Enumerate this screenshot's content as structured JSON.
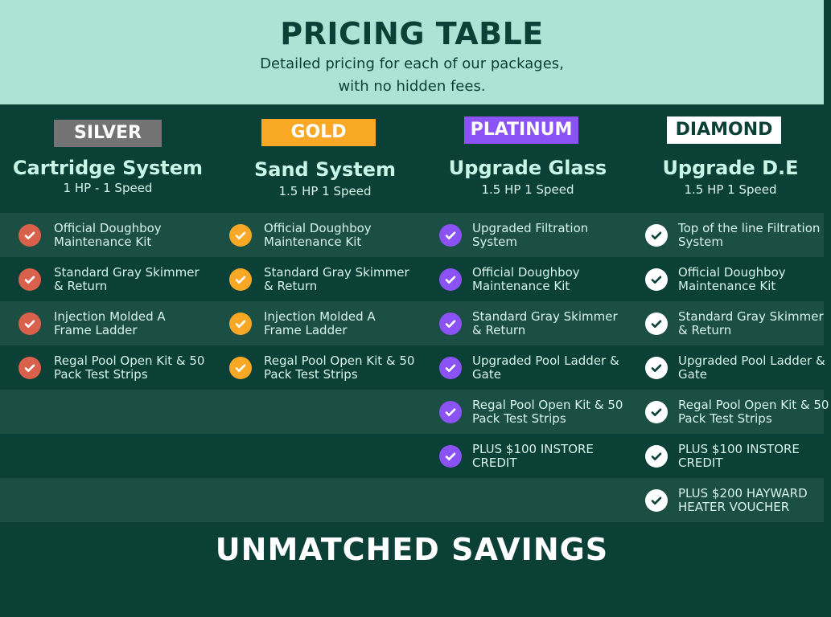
{
  "header": {
    "title": "PRICING TABLE",
    "subtitle_line1": "Detailed pricing for each of our packages,",
    "subtitle_line2": "with no hidden fees."
  },
  "plans": [
    {
      "tier": "SILVER",
      "name": "Cartridge System",
      "spec": "1 HP - 1 Speed",
      "badge_bg": "#737373",
      "badge_fg": "#ffffff",
      "check_color": "#d9614b",
      "check_fg": "#ffffff",
      "features": [
        "Official Doughboy Maintenance Kit",
        "Standard Gray Skimmer & Return",
        "Injection Molded A Frame Ladder",
        "Regal Pool Open Kit & 50 Pack Test Strips"
      ]
    },
    {
      "tier": "GOLD",
      "name": "Sand System",
      "spec": "1.5 HP 1 Speed",
      "badge_bg": "#f9a825",
      "badge_fg": "#ffffff",
      "check_color": "#f9a825",
      "check_fg": "#ffffff",
      "features": [
        "Official Doughboy Maintenance Kit",
        "Standard Gray Skimmer & Return",
        "Injection Molded A Frame Ladder",
        "Regal Pool Open Kit & 50 Pack Test Strips"
      ]
    },
    {
      "tier": "PLATINUM",
      "name": "Upgrade Glass",
      "spec": "1.5 HP 1 Speed",
      "badge_bg": "#8b52f5",
      "badge_fg": "#ffffff",
      "check_color": "#8b52f5",
      "check_fg": "#ffffff",
      "features": [
        "Upgraded Filtration System",
        "Official Doughboy Maintenance Kit",
        "Standard Gray Skimmer & Return",
        "Upgraded Pool Ladder & Gate",
        "Regal Pool Open Kit & 50 Pack Test Strips",
        "PLUS $100 INSTORE CREDIT"
      ]
    },
    {
      "tier": "DIAMOND",
      "name": "Upgrade D.E",
      "spec": "1.5 HP 1 Speed",
      "badge_bg": "#ffffff",
      "badge_fg": "#0b4036",
      "check_color": "#ffffff",
      "check_fg": "#0b4036",
      "features": [
        "Top of the line Filtration System",
        "Official Doughboy Maintenance Kit",
        "Standard Gray Skimmer & Return",
        "Upgraded Pool Ladder & Gate",
        "Regal Pool Open Kit & 50 Pack Test Strips",
        "PLUS $100 INSTORE CREDIT",
        "PLUS $200 HAYWARD HEATER VOUCHER"
      ]
    }
  ],
  "footer": {
    "text": "UNMATCHED SAVINGS"
  }
}
